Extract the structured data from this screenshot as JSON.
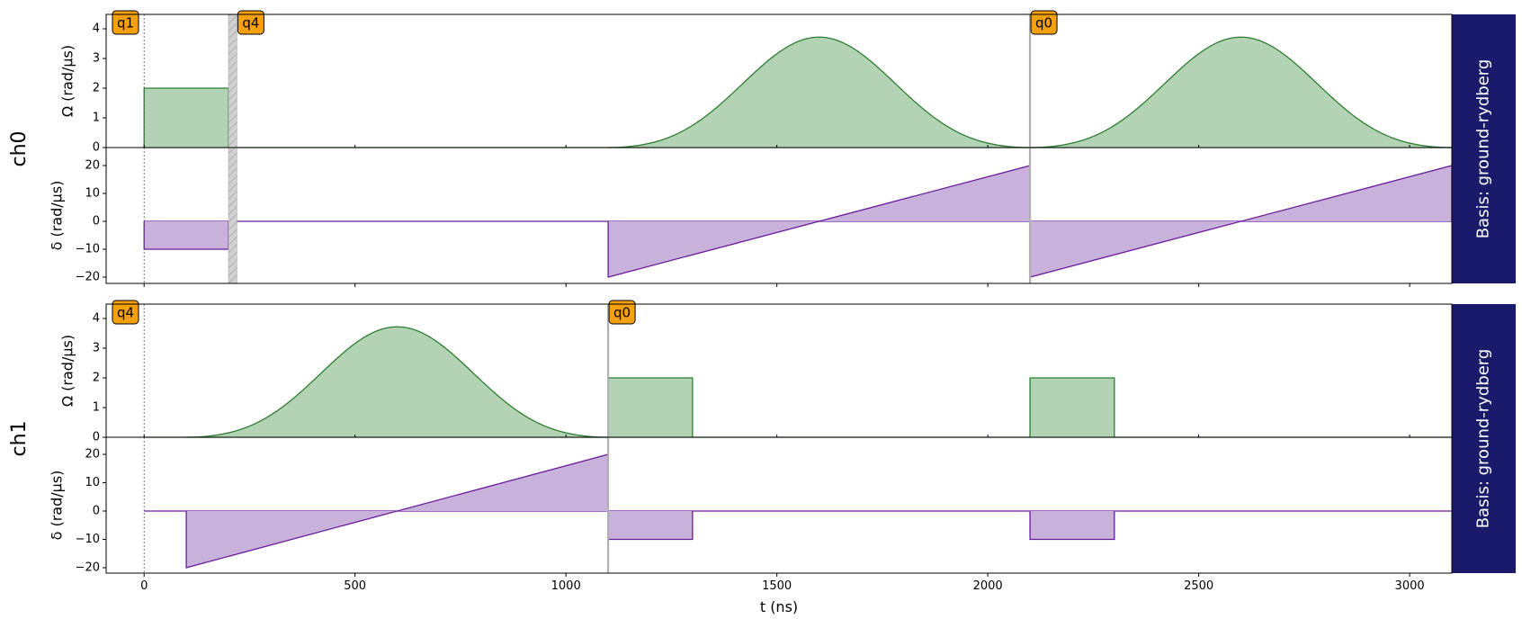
{
  "chart_data": [
    {
      "type": "area",
      "channel": "ch0",
      "basis": "Basis: ground-rydberg",
      "xlabel": "t (ns)",
      "xlim": [
        -90,
        3100
      ],
      "xticks": [
        0,
        500,
        1000,
        1500,
        2000,
        2500,
        3000
      ],
      "subplots": [
        {
          "ylabel": "Ω (rad/µs)",
          "ylim": [
            0,
            4.5
          ],
          "yticks": [
            0,
            1,
            2,
            3,
            4
          ],
          "color": "#2e7d32",
          "pulses": [
            {
              "kind": "constant",
              "t0": 0,
              "t1": 200,
              "value": 2
            },
            {
              "kind": "blackman",
              "t0": 1100,
              "t1": 2100,
              "peak": 3.72
            },
            {
              "kind": "blackman",
              "t0": 2100,
              "t1": 3100,
              "peak": 3.72
            }
          ]
        },
        {
          "ylabel": "δ (rad/µs)",
          "ylim": [
            -22,
            24
          ],
          "yticks": [
            -20,
            -10,
            0,
            10,
            20
          ],
          "color": "#6a1b9a",
          "pulses": [
            {
              "kind": "constant",
              "t0": 0,
              "t1": 200,
              "value": -10
            },
            {
              "kind": "ramp",
              "t0": 1100,
              "t1": 2100,
              "start": -20,
              "end": 20
            },
            {
              "kind": "ramp",
              "t0": 2100,
              "t1": 3100,
              "start": -20,
              "end": 20
            }
          ]
        }
      ],
      "targets": [
        {
          "label": "q1",
          "t": 0,
          "style": "dotted"
        },
        {
          "label": "q4",
          "t": 200,
          "style": "hatch",
          "t_end": 220
        },
        {
          "label": "q0",
          "t": 2100,
          "style": "solid"
        }
      ]
    },
    {
      "type": "area",
      "channel": "ch1",
      "basis": "Basis: ground-rydberg",
      "xlabel": "t (ns)",
      "xlim": [
        -90,
        3100
      ],
      "xticks": [
        0,
        500,
        1000,
        1500,
        2000,
        2500,
        3000
      ],
      "subplots": [
        {
          "ylabel": "Ω (rad/µs)",
          "ylim": [
            0,
            4.5
          ],
          "yticks": [
            0,
            1,
            2,
            3,
            4
          ],
          "color": "#2e7d32",
          "pulses": [
            {
              "kind": "blackman",
              "t0": 100,
              "t1": 1100,
              "peak": 3.72
            },
            {
              "kind": "constant",
              "t0": 1100,
              "t1": 1300,
              "value": 2
            },
            {
              "kind": "constant",
              "t0": 2100,
              "t1": 2300,
              "value": 2
            }
          ]
        },
        {
          "ylabel": "δ (rad/µs)",
          "ylim": [
            -22,
            24
          ],
          "yticks": [
            -20,
            -10,
            0,
            10,
            20
          ],
          "color": "#6a1b9a",
          "pulses": [
            {
              "kind": "ramp",
              "t0": 100,
              "t1": 1100,
              "start": -20,
              "end": 20
            },
            {
              "kind": "constant",
              "t0": 1100,
              "t1": 1300,
              "value": -10
            },
            {
              "kind": "constant",
              "t0": 2100,
              "t1": 2300,
              "value": -10
            }
          ]
        }
      ],
      "targets": [
        {
          "label": "q4",
          "t": 0,
          "style": "dotted"
        },
        {
          "label": "q0",
          "t": 1100,
          "style": "solid"
        }
      ]
    }
  ],
  "colors": {
    "omega_line": "#2e7d32",
    "omega_fill": "#b2d3b4",
    "delta_line": "#6a1b9a",
    "delta_fill": "#c8b1db",
    "basis_panel": "#1a1a6b",
    "target_box": "#f5a00f"
  }
}
